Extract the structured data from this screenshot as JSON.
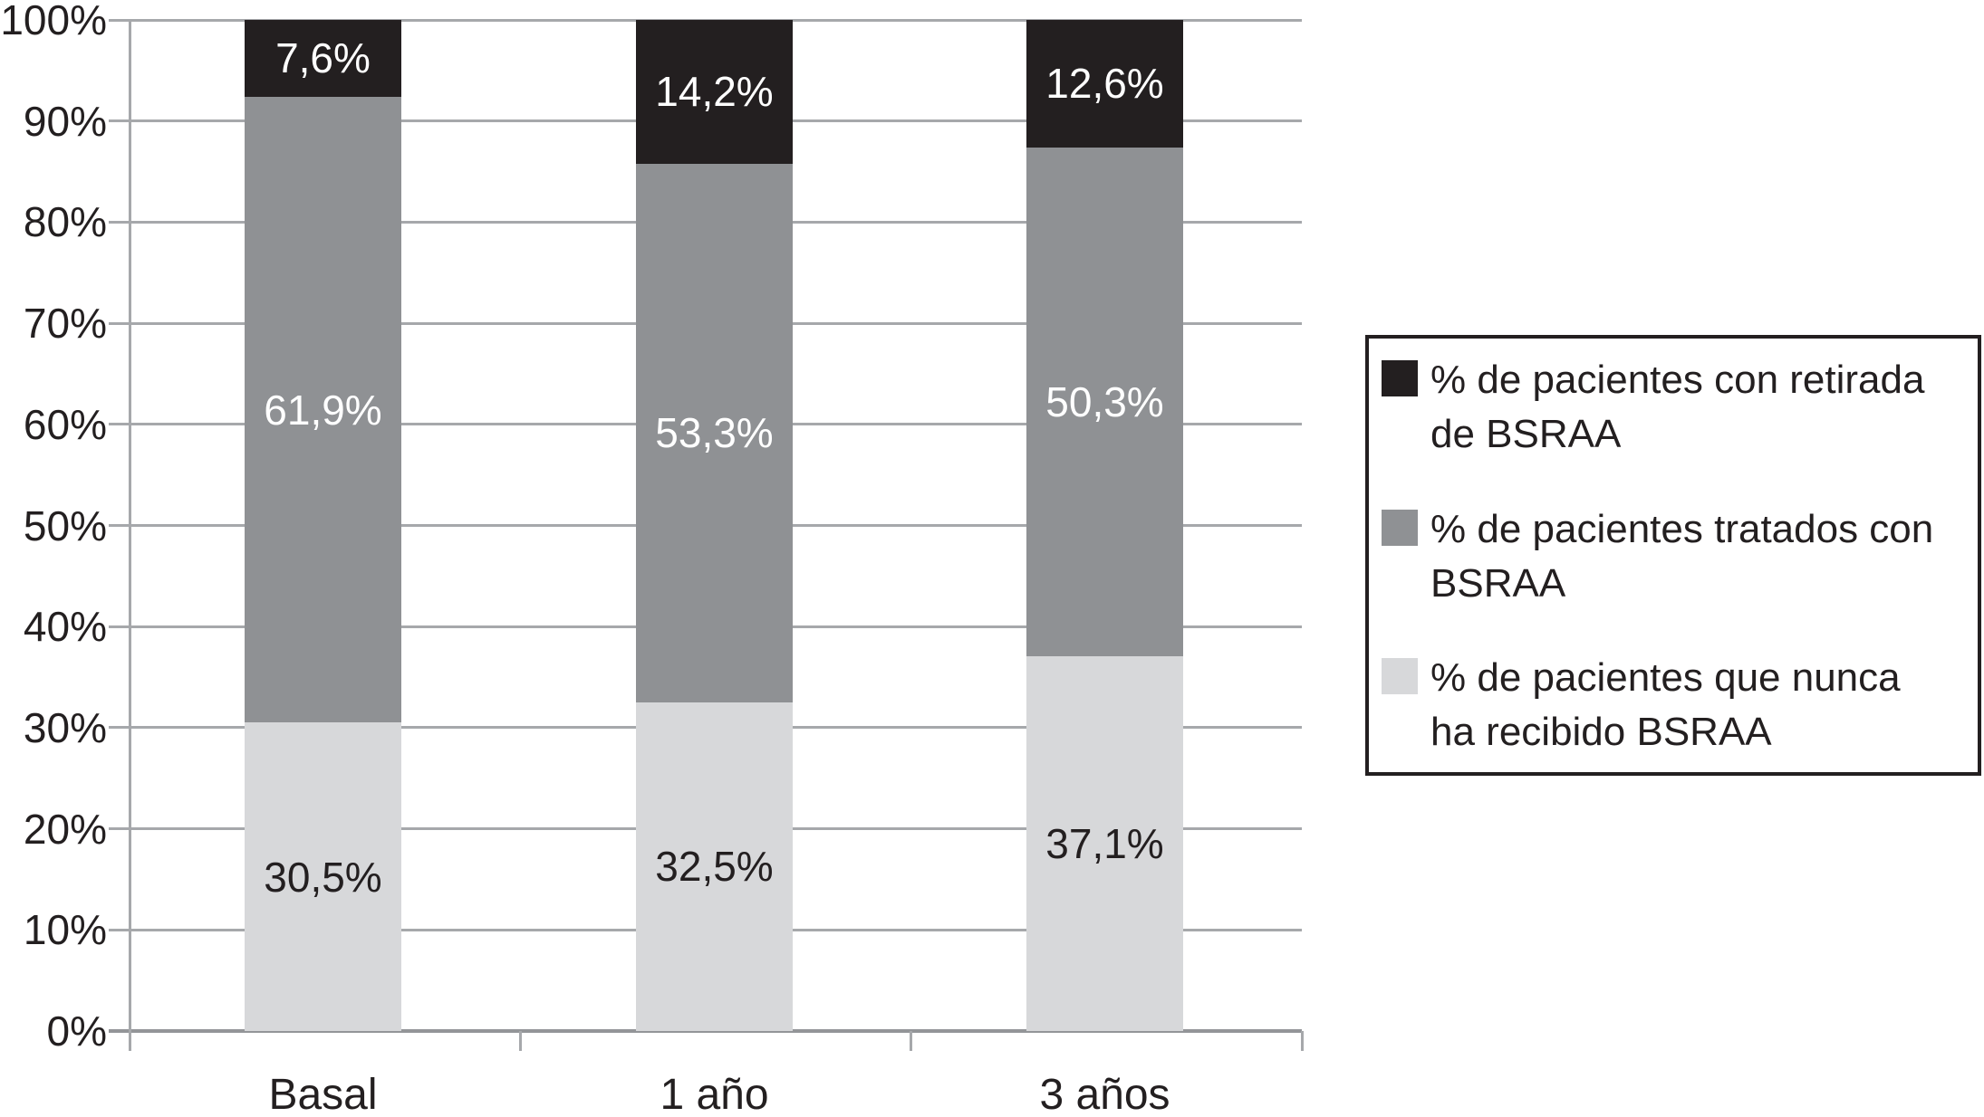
{
  "chart_data": {
    "type": "bar",
    "stacked": true,
    "title": "",
    "xlabel": "",
    "ylabel": "",
    "categories": [
      "Basal",
      "1 año",
      "3 años"
    ],
    "series": [
      {
        "name": "% de pacientes con retirada de BSRAA",
        "legend_lines": [
          "% de pacientes con retirada",
          "de BSRAA"
        ],
        "color": "#231f20",
        "label_color": "#ffffff",
        "values": [
          7.6,
          14.2,
          12.6
        ],
        "labels": [
          "7,6%",
          "14,2%",
          "12,6%"
        ]
      },
      {
        "name": "% de pacientes tratados con BSRAA",
        "legend_lines": [
          "% de pacientes tratados con",
          "BSRAA"
        ],
        "color": "#8f9194",
        "label_color": "#ffffff",
        "values": [
          61.9,
          53.3,
          50.3
        ],
        "labels": [
          "61,9%",
          "53,3%",
          "50,3%"
        ]
      },
      {
        "name": "% de pacientes que nunca ha recibido BSRAA",
        "legend_lines": [
          "% de pacientes que nunca",
          "ha recibido BSRAA"
        ],
        "color": "#d7d8da",
        "label_color": "#231f20",
        "values": [
          30.5,
          32.5,
          37.1
        ],
        "labels": [
          "30,5%",
          "32,5%",
          "37,1%"
        ]
      }
    ],
    "y_axis": {
      "min": 0,
      "max": 100,
      "step": 10,
      "tick_labels": [
        "0%",
        "10%",
        "20%",
        "30%",
        "40%",
        "50%",
        "60%",
        "70%",
        "80%",
        "90%",
        "100%"
      ]
    },
    "grid": true,
    "legend_position": "right",
    "colors": {
      "gridline": "#a6a8ab",
      "baseline": "#939598",
      "text": "#231f20",
      "background": "#ffffff"
    }
  }
}
